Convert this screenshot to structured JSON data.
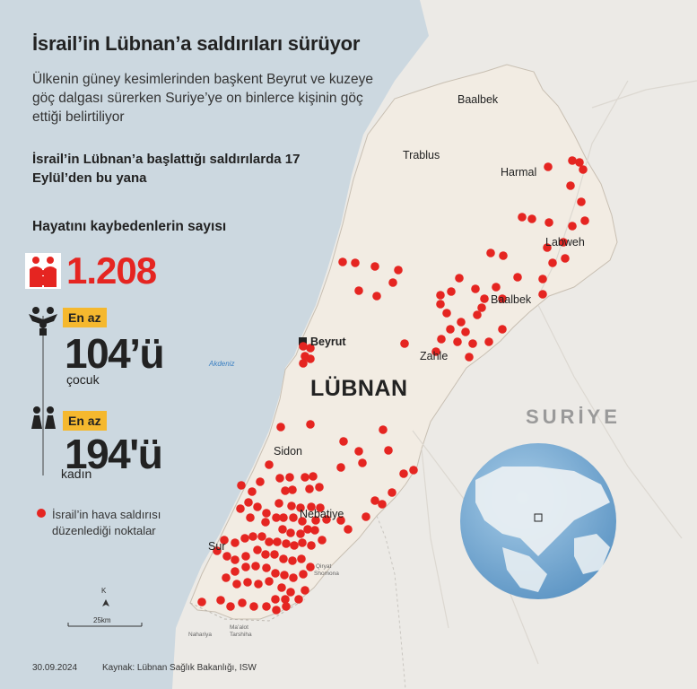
{
  "title": "İsrail’in Lübnan’a saldırıları sürüyor",
  "subtitle": "Ülkenin güney kesimlerinden başkent Beyrut ve kuzeye göç dalgası sürerken Suriye’ye on binlerce kişinin göç ettiği belirtiliyor",
  "since_text": "İsrail’in Lübnan’a başlattığı saldırılarda 17 Eylül’den bu yana",
  "deaths": {
    "label": "Hayatını kaybedenlerin sayısı",
    "value": "1.208"
  },
  "children": {
    "badge": "En az",
    "value": "104’ü",
    "label": "çocuk"
  },
  "women": {
    "badge": "En az",
    "value": "194'ü",
    "label": "kadın"
  },
  "legend": {
    "line1": "İsrail’in hava saldırısı",
    "line2": "düzenlediği noktalar"
  },
  "map_labels": {
    "country": "LÜBNAN",
    "neighbor": "SURİYE",
    "sea": "Akdeniz",
    "cities": {
      "baalbek_north": "Baalbek",
      "trablus": "Trablus",
      "harmal": "Harmal",
      "labweh": "Labweh",
      "baalbek": "Baalbek",
      "beyrut": "Beyrut",
      "zahle": "Zahle",
      "sidon": "Sidon",
      "nebatiye": "Nebatiye",
      "sur": "Sur",
      "qiryat_1": "Qiryat",
      "qiryat_2": "Shomona",
      "nahariya": "Nahariya",
      "maalot_1": "Ma’alot",
      "maalot_2": "Tarshiha"
    }
  },
  "scale": {
    "north": "K",
    "label": "25km"
  },
  "footer": {
    "date": "30.09.2024",
    "source": "Kaynak: Lübnan Sağlık Bakanlığı, ISW"
  },
  "colors": {
    "strike": "#e52521",
    "badge": "#f5b82e",
    "sea": "#ccd8e0",
    "land": "#f2ece3"
  },
  "icons": [
    "family-icon",
    "child-icon",
    "women-icon",
    "strike-dot-icon",
    "north-arrow-icon",
    "globe-icon"
  ]
}
